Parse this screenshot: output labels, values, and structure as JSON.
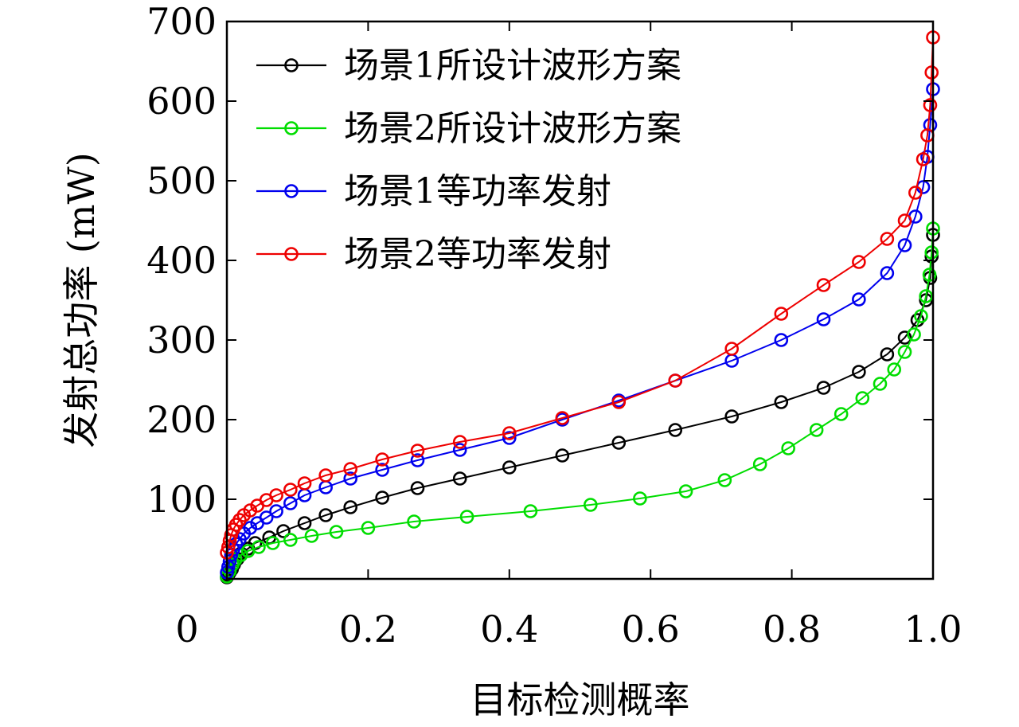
{
  "chart_data": {
    "type": "line",
    "title": "",
    "xlabel": "目标检测概率",
    "ylabel": "发射总功率 (mW)",
    "xlim": [
      0,
      1.0
    ],
    "ylim": [
      0,
      700
    ],
    "x_ticks": [
      "0",
      "0.2",
      "0.4",
      "0.6",
      "0.8",
      "1.0"
    ],
    "x_tick_values": [
      0,
      0.2,
      0.4,
      0.6,
      0.8,
      1.0
    ],
    "y_ticks": [
      "100",
      "200",
      "300",
      "400",
      "500",
      "600",
      "700"
    ],
    "y_tick_values": [
      100,
      200,
      300,
      400,
      500,
      600,
      700
    ],
    "grid": false,
    "legend_position": "top-left",
    "marker": "circle",
    "series": [
      {
        "name": "场景1所设计波形方案",
        "color": "#000000",
        "points": [
          [
            0.0,
            2
          ],
          [
            0.002,
            5
          ],
          [
            0.004,
            8
          ],
          [
            0.007,
            12
          ],
          [
            0.01,
            18
          ],
          [
            0.015,
            25
          ],
          [
            0.02,
            32
          ],
          [
            0.03,
            38
          ],
          [
            0.04,
            45
          ],
          [
            0.06,
            52
          ],
          [
            0.08,
            60
          ],
          [
            0.11,
            70
          ],
          [
            0.14,
            80
          ],
          [
            0.175,
            90
          ],
          [
            0.22,
            102
          ],
          [
            0.27,
            114
          ],
          [
            0.33,
            126
          ],
          [
            0.4,
            140
          ],
          [
            0.475,
            155
          ],
          [
            0.555,
            171
          ],
          [
            0.635,
            187
          ],
          [
            0.715,
            204
          ],
          [
            0.785,
            222
          ],
          [
            0.845,
            240
          ],
          [
            0.895,
            260
          ],
          [
            0.935,
            282
          ],
          [
            0.96,
            303
          ],
          [
            0.978,
            325
          ],
          [
            0.99,
            350
          ],
          [
            0.996,
            378
          ],
          [
            0.998,
            405
          ],
          [
            1.0,
            432
          ]
        ]
      },
      {
        "name": "场景2所设计波形方案",
        "color": "#00dd00",
        "points": [
          [
            0.0,
            3
          ],
          [
            0.004,
            10
          ],
          [
            0.008,
            18
          ],
          [
            0.012,
            24
          ],
          [
            0.02,
            30
          ],
          [
            0.03,
            35
          ],
          [
            0.045,
            40
          ],
          [
            0.065,
            45
          ],
          [
            0.09,
            49
          ],
          [
            0.12,
            54
          ],
          [
            0.155,
            59
          ],
          [
            0.2,
            64
          ],
          [
            0.265,
            72
          ],
          [
            0.34,
            78
          ],
          [
            0.43,
            85
          ],
          [
            0.515,
            93
          ],
          [
            0.585,
            101
          ],
          [
            0.65,
            110
          ],
          [
            0.705,
            124
          ],
          [
            0.755,
            144
          ],
          [
            0.795,
            164
          ],
          [
            0.835,
            187
          ],
          [
            0.87,
            207
          ],
          [
            0.9,
            227
          ],
          [
            0.925,
            245
          ],
          [
            0.945,
            263
          ],
          [
            0.96,
            285
          ],
          [
            0.973,
            307
          ],
          [
            0.983,
            330
          ],
          [
            0.99,
            355
          ],
          [
            0.995,
            382
          ],
          [
            0.998,
            410
          ],
          [
            1.0,
            440
          ]
        ]
      },
      {
        "name": "场景1等功率发射",
        "color": "#0000ee",
        "points": [
          [
            0.0,
            8
          ],
          [
            0.002,
            15
          ],
          [
            0.004,
            22
          ],
          [
            0.006,
            30
          ],
          [
            0.009,
            37
          ],
          [
            0.013,
            44
          ],
          [
            0.018,
            50
          ],
          [
            0.024,
            57
          ],
          [
            0.033,
            64
          ],
          [
            0.043,
            70
          ],
          [
            0.056,
            77
          ],
          [
            0.07,
            85
          ],
          [
            0.09,
            95
          ],
          [
            0.11,
            105
          ],
          [
            0.14,
            115
          ],
          [
            0.175,
            126
          ],
          [
            0.22,
            137
          ],
          [
            0.27,
            149
          ],
          [
            0.33,
            162
          ],
          [
            0.4,
            177
          ],
          [
            0.475,
            200
          ],
          [
            0.555,
            224
          ],
          [
            0.635,
            249
          ],
          [
            0.715,
            274
          ],
          [
            0.785,
            300
          ],
          [
            0.845,
            326
          ],
          [
            0.895,
            351
          ],
          [
            0.935,
            384
          ],
          [
            0.96,
            419
          ],
          [
            0.975,
            455
          ],
          [
            0.986,
            492
          ],
          [
            0.992,
            530
          ],
          [
            0.996,
            570
          ],
          [
            1.0,
            615
          ]
        ]
      },
      {
        "name": "场景2等功率发射",
        "color": "#ee0000",
        "points": [
          [
            0.0,
            33
          ],
          [
            0.002,
            40
          ],
          [
            0.004,
            48
          ],
          [
            0.006,
            55
          ],
          [
            0.009,
            62
          ],
          [
            0.013,
            68
          ],
          [
            0.018,
            74
          ],
          [
            0.024,
            80
          ],
          [
            0.033,
            86
          ],
          [
            0.043,
            92
          ],
          [
            0.056,
            99
          ],
          [
            0.07,
            105
          ],
          [
            0.09,
            112
          ],
          [
            0.11,
            120
          ],
          [
            0.14,
            130
          ],
          [
            0.175,
            138
          ],
          [
            0.22,
            150
          ],
          [
            0.27,
            161
          ],
          [
            0.33,
            172
          ],
          [
            0.4,
            183
          ],
          [
            0.475,
            202
          ],
          [
            0.555,
            222
          ],
          [
            0.635,
            249
          ],
          [
            0.715,
            289
          ],
          [
            0.785,
            333
          ],
          [
            0.845,
            369
          ],
          [
            0.895,
            398
          ],
          [
            0.935,
            427
          ],
          [
            0.96,
            450
          ],
          [
            0.975,
            485
          ],
          [
            0.986,
            527
          ],
          [
            0.992,
            557
          ],
          [
            0.996,
            595
          ],
          [
            0.998,
            636
          ],
          [
            1.0,
            680
          ]
        ]
      }
    ]
  }
}
